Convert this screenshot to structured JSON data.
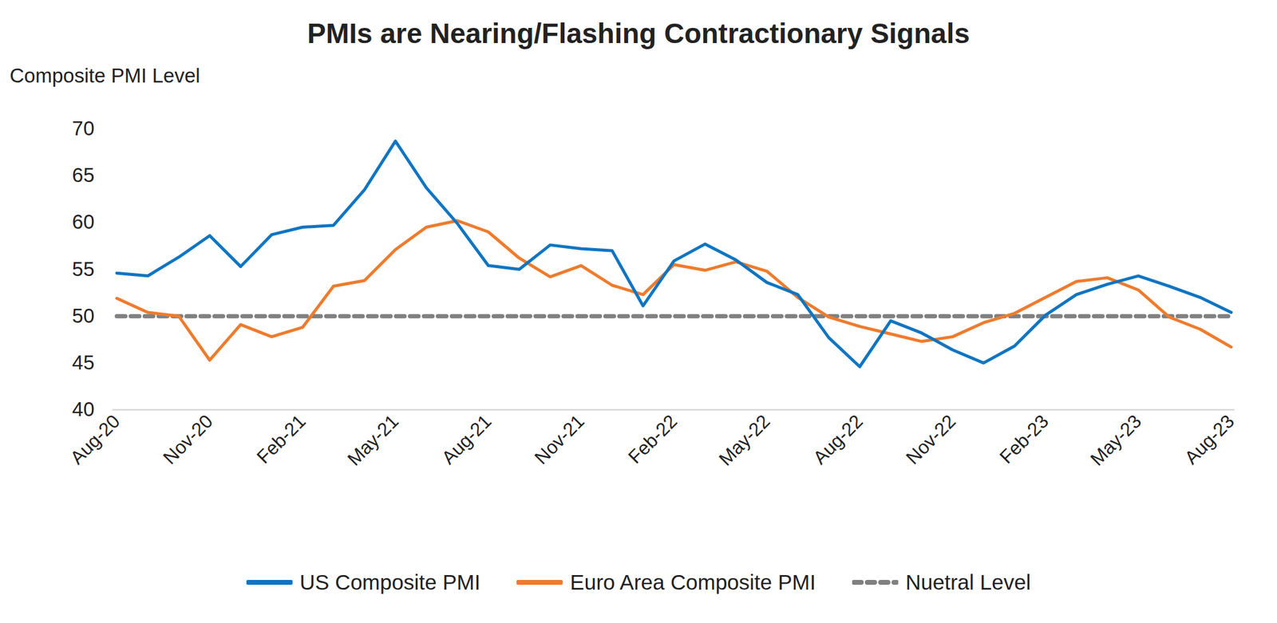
{
  "chart_data": {
    "type": "line",
    "title": "PMIs are Nearing/Flashing Contractionary Signals",
    "y_label": "Composite PMI Level",
    "categories": [
      "Aug-20",
      null,
      null,
      "Nov-20",
      null,
      null,
      "Feb-21",
      null,
      null,
      "May-21",
      null,
      null,
      "Aug-21",
      null,
      null,
      "Nov-21",
      null,
      null,
      "Feb-22",
      null,
      null,
      "May-22",
      null,
      null,
      "Aug-22",
      null,
      null,
      "Nov-22",
      null,
      null,
      "Feb-23",
      null,
      null,
      "May-23",
      null,
      null,
      "Aug-23"
    ],
    "series": [
      {
        "name": "US Composite PMI",
        "color": "#0F75C2",
        "line_style": "solid",
        "values": [
          54.6,
          54.3,
          56.3,
          58.6,
          55.3,
          58.7,
          59.5,
          59.7,
          63.5,
          68.7,
          63.7,
          59.9,
          55.4,
          55.0,
          57.6,
          57.2,
          57.0,
          51.1,
          55.9,
          57.7,
          56.0,
          53.6,
          52.3,
          47.7,
          44.6,
          49.5,
          48.2,
          46.4,
          45.0,
          46.8,
          50.1,
          52.3,
          53.4,
          54.3,
          53.2,
          52.0,
          50.4
        ]
      },
      {
        "name": "Euro Area Composite PMI",
        "color": "#EF7B2D",
        "line_style": "solid",
        "values": [
          51.9,
          50.4,
          50.0,
          45.3,
          49.1,
          47.8,
          48.8,
          53.2,
          53.8,
          57.1,
          59.5,
          60.2,
          59.0,
          56.2,
          54.2,
          55.4,
          53.3,
          52.3,
          55.5,
          54.9,
          55.8,
          54.8,
          52.0,
          49.9,
          48.9,
          48.1,
          47.3,
          47.8,
          49.3,
          50.3,
          52.0,
          53.7,
          54.1,
          52.8,
          49.9,
          48.6,
          46.7
        ]
      },
      {
        "name": "Nuetral Level",
        "color": "#808080",
        "line_style": "dashed",
        "values": [
          50,
          50,
          50,
          50,
          50,
          50,
          50,
          50,
          50,
          50,
          50,
          50,
          50,
          50,
          50,
          50,
          50,
          50,
          50,
          50,
          50,
          50,
          50,
          50,
          50,
          50,
          50,
          50,
          50,
          50,
          50,
          50,
          50,
          50,
          50,
          50,
          50
        ]
      }
    ],
    "ylim": [
      40,
      70
    ],
    "yticks": [
      40,
      45,
      50,
      55,
      60,
      65,
      70
    ],
    "grid": false,
    "legend": "bottom"
  }
}
